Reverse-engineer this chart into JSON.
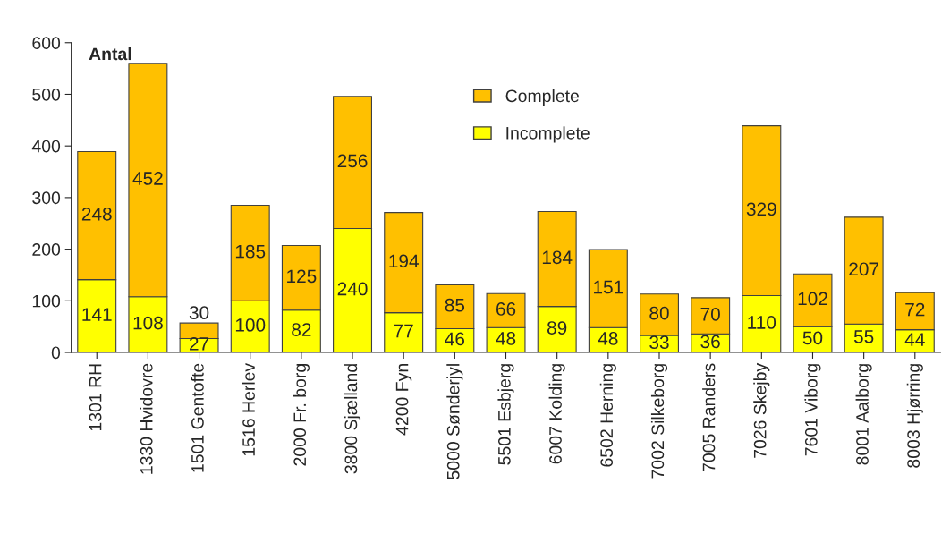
{
  "chart_data": {
    "type": "bar",
    "stacked": true,
    "title": "Antal",
    "categories": [
      "1301 RH",
      "1330 Hvidovre",
      "1501 Gentofte",
      "1516 Herlev",
      "2000 Fr. borg",
      "3800 Sjælland",
      "4200 Fyn",
      "5000 Sønderjyl",
      "5501 Esbjerg",
      "6007 Kolding",
      "6502 Herning",
      "7002 Silkeborg",
      "7005 Randers",
      "7026 Skejby",
      "7601 Viborg",
      "8001 Aalborg",
      "8003 Hjørring"
    ],
    "series": [
      {
        "name": "Incomplete",
        "color": "#ffff00",
        "values": [
          141,
          108,
          27,
          100,
          82,
          240,
          77,
          46,
          48,
          89,
          48,
          33,
          36,
          110,
          50,
          55,
          44
        ]
      },
      {
        "name": "Complete",
        "color": "#ffc000",
        "values": [
          248,
          452,
          30,
          185,
          125,
          256,
          194,
          85,
          66,
          184,
          151,
          80,
          70,
          329,
          102,
          207,
          72
        ]
      }
    ],
    "ylim": [
      0,
      600
    ],
    "yticks": [
      0,
      100,
      200,
      300,
      400,
      500,
      600
    ],
    "data_labels": true,
    "legend": "top",
    "grid": false
  }
}
